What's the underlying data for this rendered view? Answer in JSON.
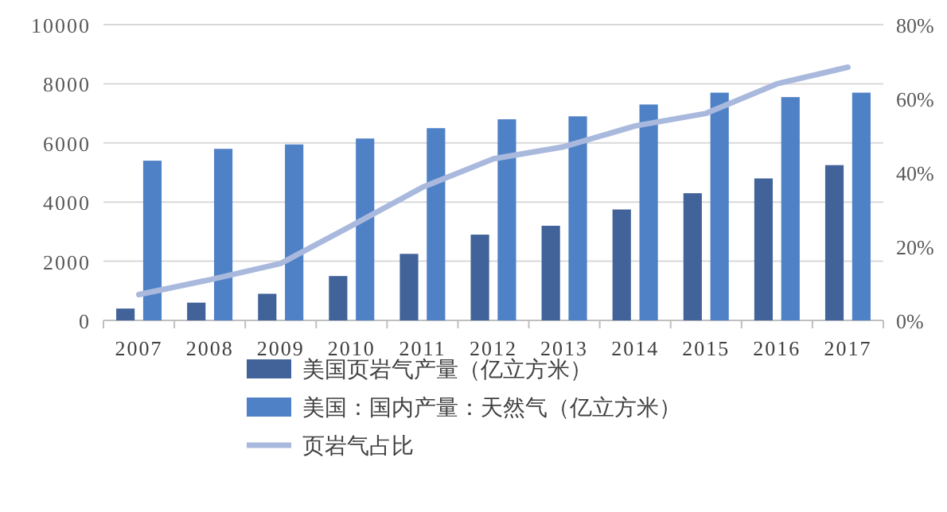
{
  "chart_data": {
    "type": "bar",
    "categories": [
      "2007",
      "2008",
      "2009",
      "2010",
      "2011",
      "2012",
      "2013",
      "2014",
      "2015",
      "2016",
      "2017"
    ],
    "series": [
      {
        "name": "美国页岩气产量（亿立方米）",
        "color": "#41639a",
        "values": [
          400,
          600,
          900,
          1500,
          2250,
          2900,
          3200,
          3750,
          4300,
          4800,
          5250
        ]
      },
      {
        "name": "美国：国内产量：天然气（亿立方米）",
        "color": "#4f81c6",
        "values": [
          5400,
          5800,
          5950,
          6150,
          6500,
          6800,
          6900,
          7300,
          7700,
          7550,
          7700
        ]
      },
      {
        "name": "页岩气占比",
        "type": "line",
        "axis": "y2",
        "color": "#a9b9dd",
        "values": [
          7,
          11,
          15.4,
          25.6,
          36,
          43.7,
          47,
          52.6,
          56,
          64,
          68.5
        ]
      }
    ],
    "ylim": [
      0,
      10000
    ],
    "yticks": [
      0,
      2000,
      4000,
      6000,
      8000,
      10000
    ],
    "y2lim": [
      0,
      80
    ],
    "y2ticks": [
      {
        "value": 0,
        "label": "0%"
      },
      {
        "value": 20,
        "label": "20%"
      },
      {
        "value": 40,
        "label": "40%"
      },
      {
        "value": 60,
        "label": "60%"
      },
      {
        "value": 80,
        "label": "80%"
      }
    ],
    "grid": "y",
    "legend": "bottom"
  }
}
